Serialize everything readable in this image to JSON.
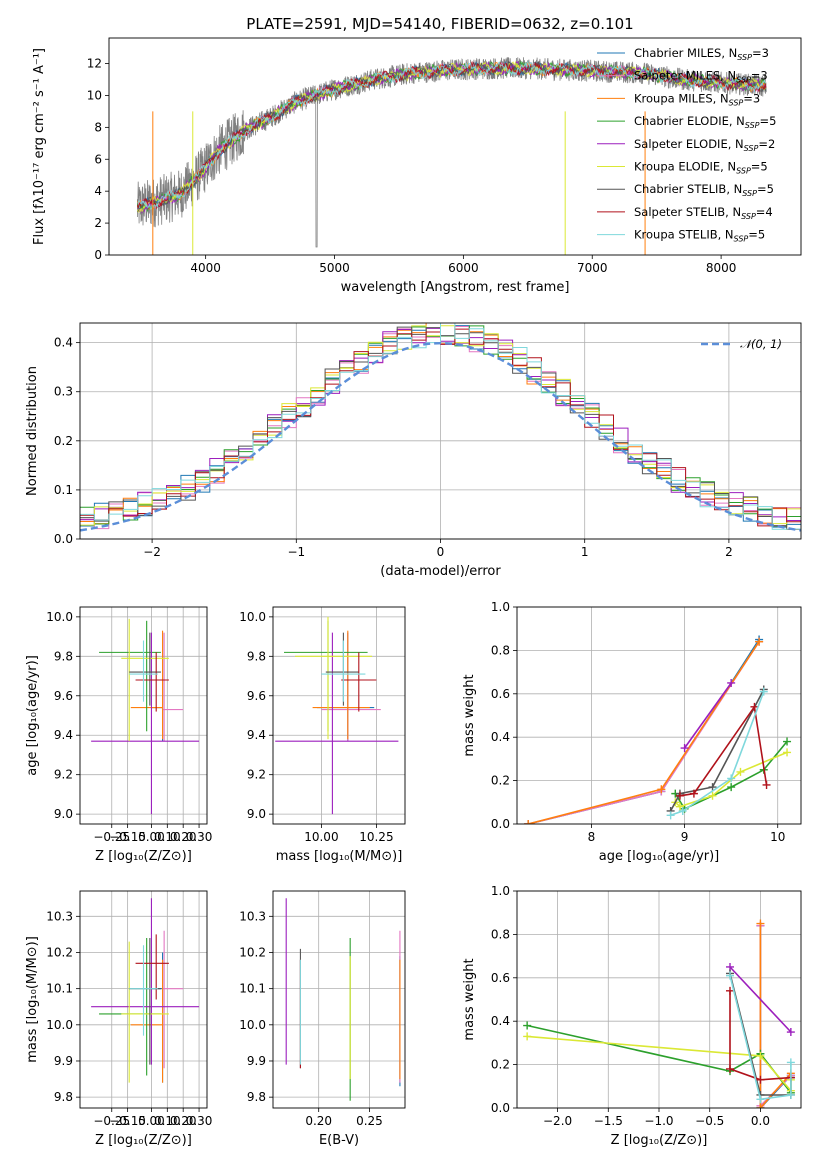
{
  "figure": {
    "title": "PLATE=2591, MJD=54140, FIBERID=0632, z=0.101"
  },
  "models": [
    {
      "name": "Chabrier MILES, N_SSP=3",
      "label": "Chabrier MILES, N",
      "sub": "SSP",
      "tail": "=3",
      "color": "#1f77b4"
    },
    {
      "name": "Salpeter MILES, N_SSP=3",
      "label": "Salpeter MILES, N",
      "sub": "SSP",
      "tail": "=3",
      "color": "#e377c2"
    },
    {
      "name": "Kroupa MILES, N_SSP=3",
      "label": "Kroupa MILES, N",
      "sub": "SSP",
      "tail": "=3",
      "color": "#ff7f0e"
    },
    {
      "name": "Chabrier ELODIE, N_SSP=5",
      "label": "Chabrier ELODIE, N",
      "sub": "SSP",
      "tail": "=5",
      "color": "#2ca02c"
    },
    {
      "name": "Salpeter ELODIE, N_SSP=2",
      "label": "Salpeter ELODIE, N",
      "sub": "SSP",
      "tail": "=2",
      "color": "#9c1fbd"
    },
    {
      "name": "Kroupa ELODIE, N_SSP=5",
      "label": "Kroupa ELODIE, N",
      "sub": "SSP",
      "tail": "=5",
      "color": "#dbe835"
    },
    {
      "name": "Chabrier STELIB, N_SSP=5",
      "label": "Chabrier STELIB, N",
      "sub": "SSP",
      "tail": "=5",
      "color": "#555555"
    },
    {
      "name": "Salpeter STELIB, N_SSP=4",
      "label": "Salpeter STELIB, N",
      "sub": "SSP",
      "tail": "=4",
      "color": "#b0121b"
    },
    {
      "name": "Kroupa STELIB, N_SSP=5",
      "label": "Kroupa STELIB, N",
      "sub": "SSP",
      "tail": "=5",
      "color": "#7fd8dc"
    }
  ],
  "chart_data": [
    {
      "id": "spectrum",
      "type": "line",
      "title": "PLATE=2591, MJD=54140, FIBERID=0632, z=0.101",
      "xlabel": "wavelength [Angstrom, rest frame]",
      "ylabel": "Flux [fλ10⁻¹⁷ erg cm⁻² s⁻¹ A⁻¹]",
      "xlim": [
        3250,
        8620
      ],
      "ylim": [
        0,
        13.6
      ],
      "xticks": [
        4000,
        5000,
        6000,
        7000,
        8000
      ],
      "yticks": [
        0,
        2,
        4,
        6,
        8,
        10,
        12
      ],
      "grid": false,
      "legend": "right",
      "continuum_wavelength": [
        3470,
        3600,
        3800,
        3950,
        4100,
        4300,
        4500,
        4700,
        5000,
        5300,
        5600,
        5900,
        6200,
        6500,
        6800,
        7100,
        7400,
        7700,
        8000,
        8350
      ],
      "continuum_flux": [
        3.0,
        3.3,
        3.8,
        5.0,
        6.5,
        7.8,
        8.6,
        9.6,
        10.4,
        11.0,
        11.4,
        11.6,
        11.7,
        11.7,
        11.6,
        11.5,
        11.4,
        11.0,
        10.8,
        10.6
      ]
    },
    {
      "id": "residuals",
      "type": "line",
      "xlabel": "(data-model)/error",
      "ylabel": "Normed distribution",
      "xlim": [
        -2.5,
        2.5
      ],
      "ylim": [
        0,
        0.44
      ],
      "xticks": [
        -2,
        -1,
        0,
        1,
        2
      ],
      "yticks": [
        0.0,
        0.1,
        0.2,
        0.3,
        0.4
      ],
      "grid": true,
      "legend": "top-right",
      "reference_label": "𝒩(0, 1)",
      "reference": {
        "mean": 0,
        "sigma": 1
      }
    },
    {
      "id": "age-vs-Z",
      "type": "scatter",
      "xlabel": "Z [log₁₀(Z/Z⊙)]",
      "ylabel": "age  [log₁₀(age/yr)]",
      "xlim": [
        -0.45,
        0.35
      ],
      "ylim": [
        8.95,
        10.05
      ],
      "xticks": [
        -0.25,
        -0.15,
        0.0,
        0.1,
        0.2,
        0.3
      ],
      "xticklabels": [
        "−0.25",
        "−0.15",
        "0.00",
        "0.10",
        "0.20",
        "0.30"
      ],
      "yticks": [
        9.0,
        9.2,
        9.4,
        9.6,
        9.8,
        10.0
      ],
      "grid": true,
      "points": [
        {
          "x": 0.07,
          "y": 9.54,
          "xerr": [
            0.07,
            0.0
          ],
          "yerr": [
            0.17,
            0.38
          ],
          "color": "#1f77b4"
        },
        {
          "x": 0.08,
          "y": 9.53,
          "xerr": [
            0.01,
            0.12
          ],
          "yerr": [
            0.16,
            0.39
          ],
          "color": "#e377c2"
        },
        {
          "x": 0.07,
          "y": 9.54,
          "xerr": [
            0.2,
            0.0
          ],
          "yerr": [
            0.16,
            0.39
          ],
          "color": "#ff7f0e"
        },
        {
          "x": -0.03,
          "y": 9.82,
          "xerr": [
            0.3,
            0.09
          ],
          "yerr": [
            0.4,
            0.16
          ],
          "color": "#2ca02c"
        },
        {
          "x": 0.0,
          "y": 9.37,
          "xerr": [
            0.38,
            0.3
          ],
          "yerr": [
            0.37,
            0.55
          ],
          "color": "#9c1fbd"
        },
        {
          "x": -0.14,
          "y": 9.79,
          "xerr": [
            0.05,
            0.25
          ],
          "yerr": [
            0.42,
            0.2
          ],
          "color": "#dbe835"
        },
        {
          "x": -0.01,
          "y": 9.72,
          "xerr": [
            0.13,
            0.07
          ],
          "yerr": [
            0.17,
            0.2
          ],
          "color": "#555555"
        },
        {
          "x": 0.03,
          "y": 9.68,
          "xerr": [
            0.13,
            0.08
          ],
          "yerr": [
            0.16,
            0.14
          ],
          "color": "#b0121b"
        },
        {
          "x": -0.05,
          "y": 9.71,
          "xerr": [
            0.09,
            0.09
          ],
          "yerr": [
            0.14,
            0.17
          ],
          "color": "#7fd8dc"
        }
      ]
    },
    {
      "id": "age-vs-mass",
      "type": "scatter",
      "xlabel": "mass [log₁₀(M/M⊙)]",
      "xlim": [
        9.78,
        10.38
      ],
      "ylim": [
        8.95,
        10.05
      ],
      "xticks": [
        10.0,
        10.25
      ],
      "xticklabels": [
        "10.00",
        "10.25"
      ],
      "yticks": [
        9.0,
        9.2,
        9.4,
        9.6,
        9.8,
        10.0
      ],
      "grid": true,
      "points": [
        {
          "x": 10.12,
          "y": 9.54,
          "xerr": [
            0.14,
            0.12
          ],
          "yerr": [
            0.17,
            0.38
          ],
          "color": "#1f77b4"
        },
        {
          "x": 10.12,
          "y": 9.53,
          "xerr": [
            0.12,
            0.15
          ],
          "yerr": [
            0.16,
            0.39
          ],
          "color": "#e377c2"
        },
        {
          "x": 10.12,
          "y": 9.54,
          "xerr": [
            0.16,
            0.1
          ],
          "yerr": [
            0.16,
            0.39
          ],
          "color": "#ff7f0e"
        },
        {
          "x": 10.03,
          "y": 9.82,
          "xerr": [
            0.2,
            0.18
          ],
          "yerr": [
            0.4,
            0.16
          ],
          "color": "#2ca02c"
        },
        {
          "x": 10.05,
          "y": 9.37,
          "xerr": [
            0.26,
            0.3
          ],
          "yerr": [
            0.37,
            0.55
          ],
          "color": "#9c1fbd"
        },
        {
          "x": 10.03,
          "y": 9.8,
          "xerr": [
            0.15,
            0.2
          ],
          "yerr": [
            0.42,
            0.2
          ],
          "color": "#dbe835"
        },
        {
          "x": 10.1,
          "y": 9.72,
          "xerr": [
            0.08,
            0.07
          ],
          "yerr": [
            0.17,
            0.2
          ],
          "color": "#555555"
        },
        {
          "x": 10.17,
          "y": 9.68,
          "xerr": [
            0.08,
            0.08
          ],
          "yerr": [
            0.16,
            0.14
          ],
          "color": "#b0121b"
        },
        {
          "x": 10.1,
          "y": 9.71,
          "xerr": [
            0.1,
            0.1
          ],
          "yerr": [
            0.14,
            0.17
          ],
          "color": "#7fd8dc"
        }
      ]
    },
    {
      "id": "weight-vs-age",
      "type": "line",
      "xlabel": "age  [log₁₀(age/yr)]",
      "ylabel": "mass weight",
      "xlim": [
        7.2,
        10.25
      ],
      "ylim": [
        0,
        1.0
      ],
      "xticks": [
        8,
        9,
        10
      ],
      "yticks": [
        0.0,
        0.2,
        0.4,
        0.6,
        0.8,
        1.0
      ],
      "grid": true,
      "series": [
        {
          "color": "#1f77b4",
          "x": [
            7.32,
            8.75,
            9.8
          ],
          "y": [
            0.0,
            0.15,
            0.85
          ]
        },
        {
          "color": "#e377c2",
          "x": [
            7.32,
            8.75,
            9.8
          ],
          "y": [
            0.0,
            0.15,
            0.84
          ]
        },
        {
          "color": "#ff7f0e",
          "x": [
            7.32,
            8.75,
            9.8
          ],
          "y": [
            0.0,
            0.16,
            0.84
          ]
        },
        {
          "color": "#2ca02c",
          "x": [
            8.9,
            9.0,
            9.5,
            9.85,
            10.1
          ],
          "y": [
            0.14,
            0.07,
            0.17,
            0.25,
            0.38
          ]
        },
        {
          "color": "#9c1fbd",
          "x": [
            9.0,
            9.5
          ],
          "y": [
            0.35,
            0.65
          ]
        },
        {
          "color": "#dbe835",
          "x": [
            8.9,
            8.95,
            9.3,
            9.6,
            10.1
          ],
          "y": [
            0.1,
            0.08,
            0.13,
            0.24,
            0.33
          ]
        },
        {
          "color": "#555555",
          "x": [
            8.85,
            8.95,
            9.3,
            9.85
          ],
          "y": [
            0.06,
            0.14,
            0.17,
            0.62
          ]
        },
        {
          "color": "#b0121b",
          "x": [
            8.95,
            9.1,
            9.75,
            9.88
          ],
          "y": [
            0.13,
            0.14,
            0.54,
            0.18
          ]
        },
        {
          "color": "#7fd8dc",
          "x": [
            8.85,
            8.98,
            9.5,
            9.85
          ],
          "y": [
            0.04,
            0.06,
            0.21,
            0.61
          ]
        }
      ]
    },
    {
      "id": "mass-vs-Z",
      "type": "scatter",
      "xlabel": "Z [log₁₀(Z/Z⊙)]",
      "ylabel": "mass [log₁₀(M/M⊙)]",
      "xlim": [
        -0.45,
        0.35
      ],
      "ylim": [
        9.77,
        10.37
      ],
      "xticks": [
        -0.25,
        -0.15,
        0.0,
        0.1,
        0.2,
        0.3
      ],
      "xticklabels": [
        "−0.25",
        "−0.15",
        "0.00",
        "0.10",
        "0.20",
        "0.30"
      ],
      "yticks": [
        9.8,
        9.9,
        10.0,
        10.1,
        10.2,
        10.3
      ],
      "grid": true,
      "points": [
        {
          "x": 0.07,
          "y": 10.1,
          "xerr": [
            0.07,
            0.0
          ],
          "yerr": [
            0.26,
            0.1
          ],
          "color": "#1f77b4"
        },
        {
          "x": 0.08,
          "y": 10.1,
          "xerr": [
            0.01,
            0.12
          ],
          "yerr": [
            0.22,
            0.16
          ],
          "color": "#e377c2"
        },
        {
          "x": 0.07,
          "y": 10.0,
          "xerr": [
            0.2,
            0.0
          ],
          "yerr": [
            0.16,
            0.18
          ],
          "color": "#ff7f0e"
        },
        {
          "x": -0.03,
          "y": 10.03,
          "xerr": [
            0.3,
            0.09
          ],
          "yerr": [
            0.17,
            0.21
          ],
          "color": "#2ca02c"
        },
        {
          "x": 0.0,
          "y": 10.05,
          "xerr": [
            0.38,
            0.3
          ],
          "yerr": [
            0.16,
            0.3
          ],
          "color": "#9c1fbd"
        },
        {
          "x": -0.14,
          "y": 10.03,
          "xerr": [
            0.05,
            0.25
          ],
          "yerr": [
            0.19,
            0.2
          ],
          "color": "#dbe835"
        },
        {
          "x": -0.01,
          "y": 10.1,
          "xerr": [
            0.13,
            0.07
          ],
          "yerr": [
            0.21,
            0.14
          ],
          "color": "#555555"
        },
        {
          "x": 0.03,
          "y": 10.17,
          "xerr": [
            0.13,
            0.08
          ],
          "yerr": [
            0.1,
            0.08
          ],
          "color": "#b0121b"
        },
        {
          "x": -0.05,
          "y": 10.1,
          "xerr": [
            0.09,
            0.09
          ],
          "yerr": [
            0.13,
            0.12
          ],
          "color": "#7fd8dc"
        }
      ]
    },
    {
      "id": "mass-vs-EBV",
      "type": "scatter",
      "xlabel": "E(B-V)",
      "xlim": [
        0.155,
        0.285
      ],
      "ylim": [
        9.77,
        10.37
      ],
      "xticks": [
        0.2,
        0.25
      ],
      "xticklabels": [
        "0.20",
        "0.25"
      ],
      "yticks": [
        9.8,
        9.9,
        10.0,
        10.1,
        10.2,
        10.3
      ],
      "grid": true,
      "points": [
        {
          "x": 0.28,
          "y": 10.0,
          "yerr": [
            0.17,
            0.19
          ],
          "color": "#1f77b4"
        },
        {
          "x": 0.28,
          "y": 10.0,
          "yerr": [
            0.16,
            0.26
          ],
          "color": "#e377c2"
        },
        {
          "x": 0.28,
          "y": 10.0,
          "yerr": [
            0.15,
            0.18
          ],
          "color": "#ff7f0e"
        },
        {
          "x": 0.231,
          "y": 10.05,
          "yerr": [
            0.26,
            0.19
          ],
          "color": "#2ca02c"
        },
        {
          "x": 0.168,
          "y": 10.1,
          "yerr": [
            0.21,
            0.25
          ],
          "color": "#9c1fbd"
        },
        {
          "x": 0.231,
          "y": 10.05,
          "yerr": [
            0.2,
            0.14
          ],
          "color": "#dbe835"
        },
        {
          "x": 0.182,
          "y": 10.05,
          "yerr": [
            0.17,
            0.16
          ],
          "color": "#555555"
        },
        {
          "x": 0.182,
          "y": 10.05,
          "yerr": [
            0.17,
            0.13
          ],
          "color": "#b0121b"
        },
        {
          "x": 0.182,
          "y": 10.05,
          "yerr": [
            0.16,
            0.13
          ],
          "color": "#7fd8dc"
        }
      ]
    },
    {
      "id": "weight-vs-Z",
      "type": "line",
      "xlabel": "Z [log₁₀(Z/Z⊙)]",
      "ylabel": "mass weight",
      "xlim": [
        -2.4,
        0.4
      ],
      "ylim": [
        0,
        1.0
      ],
      "xticks": [
        -2.0,
        -1.5,
        -1.0,
        -0.5,
        0.0
      ],
      "xticklabels": [
        "−2.0",
        "−1.5",
        "−1.0",
        "−0.5",
        "0.0"
      ],
      "yticks": [
        0.0,
        0.2,
        0.4,
        0.6,
        0.8,
        1.0
      ],
      "grid": true,
      "series": [
        {
          "color": "#1f77b4",
          "x": [
            0.0,
            0.0,
            0.3
          ],
          "y": [
            0.84,
            0.0,
            0.15
          ]
        },
        {
          "color": "#e377c2",
          "x": [
            0.0,
            0.0,
            0.3
          ],
          "y": [
            0.84,
            0.01,
            0.15
          ]
        },
        {
          "color": "#ff7f0e",
          "x": [
            0.0,
            0.0,
            0.3
          ],
          "y": [
            0.85,
            0.0,
            0.16
          ]
        },
        {
          "color": "#2ca02c",
          "x": [
            -2.3,
            -0.3,
            0.0,
            0.3
          ],
          "y": [
            0.38,
            0.17,
            0.25,
            0.07
          ]
        },
        {
          "color": "#9c1fbd",
          "x": [
            -0.3,
            0.3
          ],
          "y": [
            0.65,
            0.35
          ]
        },
        {
          "color": "#dbe835",
          "x": [
            -2.3,
            0.0,
            0.3,
            0.3
          ],
          "y": [
            0.33,
            0.24,
            0.08,
            0.13
          ]
        },
        {
          "color": "#555555",
          "x": [
            -0.3,
            0.0,
            0.3,
            0.3
          ],
          "y": [
            0.62,
            0.06,
            0.06,
            0.14
          ]
        },
        {
          "color": "#b0121b",
          "x": [
            -0.3,
            -0.3,
            0.0,
            0.3
          ],
          "y": [
            0.54,
            0.18,
            0.13,
            0.14
          ]
        },
        {
          "color": "#7fd8dc",
          "x": [
            -0.3,
            0.0,
            0.3,
            0.3
          ],
          "y": [
            0.61,
            0.04,
            0.06,
            0.21
          ]
        }
      ]
    }
  ]
}
